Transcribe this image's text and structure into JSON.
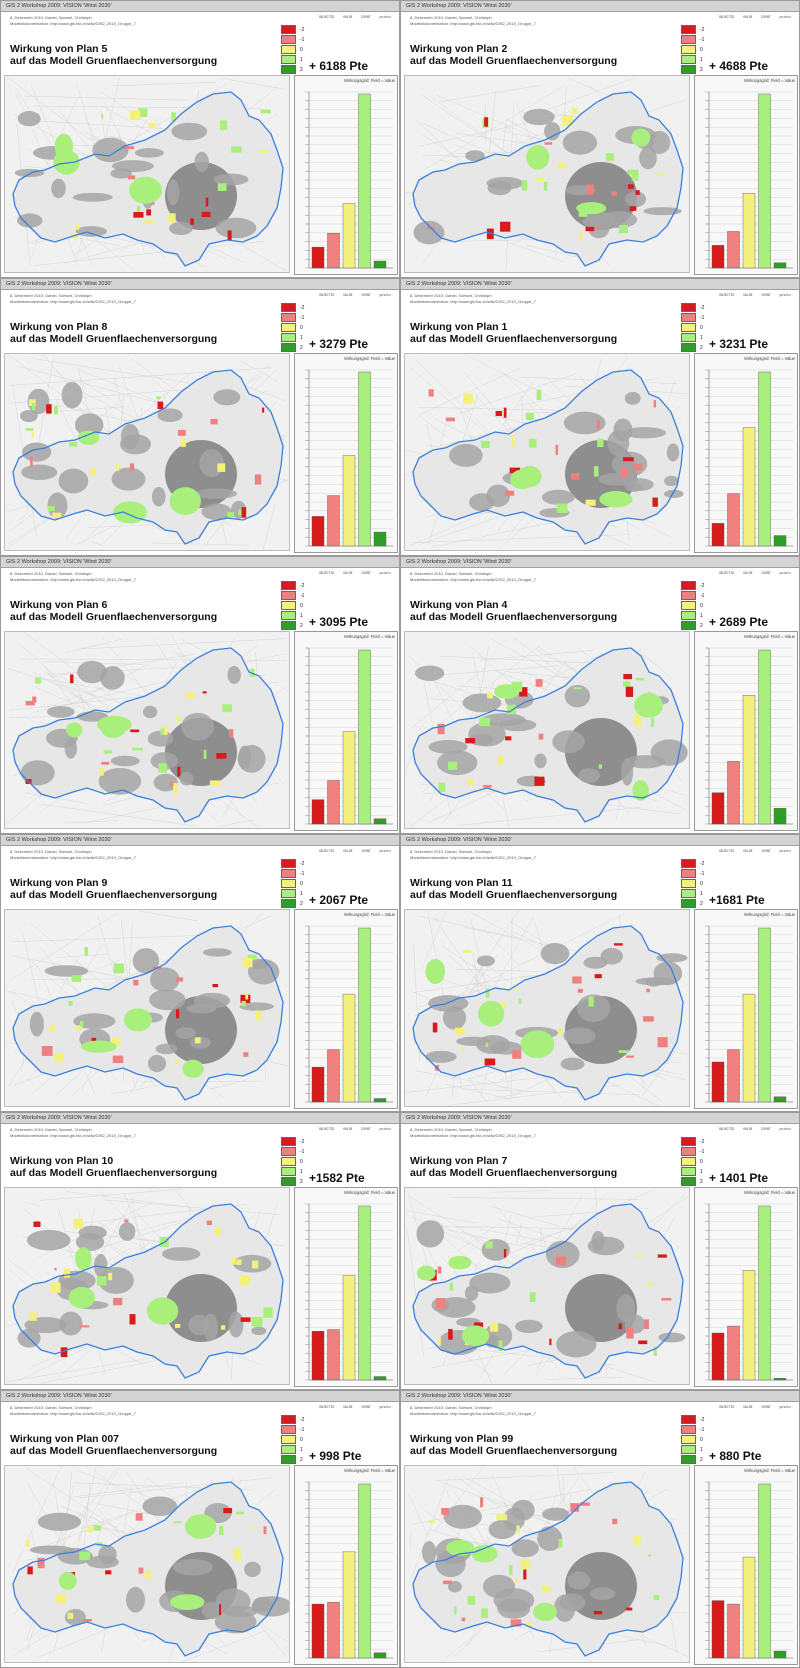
{
  "colors": {
    "-2": "#d91a1a",
    "-1": "#ee8080",
    "0": "#f4f07c",
    "1": "#a8ef7c",
    "2": "#2f9e27"
  },
  "legend_labels": [
    "-2",
    "-1",
    "0",
    "1",
    "2"
  ],
  "chart_title": "Wirkungsgrid: Field = Value",
  "stats_header": [
    "OBJECTID",
    "VALUE",
    "COUNT",
    "points"
  ],
  "panels": [
    {
      "header": "GIS 2 Workshop 2009: VISION 'Wirst 2030'",
      "meta1": "8. Dezember 2010, Daniel, Samuel, Christoph",
      "meta2": "Modelldokumentation: http://www.gis.hsr.ch/wiki/GIS2_2010_Gruppe_7",
      "title_line1": "Wirkung von Plan 5",
      "title_line2": "auf das Modell Gruenflaechenversorgung",
      "total": "+ 6188 Pte",
      "values": [
        0.12,
        0.2,
        0.37,
        1.0,
        0.04
      ]
    },
    {
      "header": "GIS 2 Workshop 2009: VISION 'Wirst 2030'",
      "meta1": "8. Dezember 2010, Daniel, Samuel, Christoph",
      "meta2": "Modelldokumentation: http://www.gis.hsr.ch/wiki/GIS2_2010_Gruppe_7",
      "title_line1": "Wirkung von Plan 2",
      "title_line2": "auf das Modell Gruenflaechenversorgung",
      "total": "+ 4688 Pte",
      "values": [
        0.13,
        0.21,
        0.43,
        1.0,
        0.03
      ]
    },
    {
      "header": "GIS 2 Workshop 2009: VISION 'Wirst 2030'",
      "meta1": "8. Dezember 2010, Daniel, Samuel, Christoph",
      "meta2": "Modelldokumentation: http://www.gis.hsr.ch/wiki/GIS2_2010_Gruppe_7",
      "title_line1": "Wirkung von Plan 8",
      "title_line2": "auf das Modell Gruenflaechenversorgung",
      "total": "+ 3279 Pte",
      "values": [
        0.17,
        0.29,
        0.52,
        1.0,
        0.08
      ]
    },
    {
      "header": "GIS 2 Workshop 2009: VISION 'Wirst 2030'",
      "meta1": "8. Dezember 2010, Daniel, Samuel, Christoph",
      "meta2": "Modelldokumentation: http://www.gis.hsr.ch/wiki/GIS2_2010_Gruppe_7",
      "title_line1": "Wirkung von Plan 1",
      "title_line2": "auf das Modell Gruenflaechenversorgung",
      "total": "+ 3231 Pte",
      "values": [
        0.13,
        0.3,
        0.68,
        1.0,
        0.06
      ]
    },
    {
      "header": "GIS 2 Workshop 2009: VISION 'Wirst 2030'",
      "meta1": "8. Dezember 2010, Daniel, Samuel, Christoph",
      "meta2": "Modelldokumentation: http://www.gis.hsr.ch/wiki/GIS2_2010_Gruppe_7",
      "title_line1": "Wirkung von Plan 6",
      "title_line2": "auf das Modell Gruenflaechenversorgung",
      "total": "+ 3095 Pte",
      "values": [
        0.14,
        0.25,
        0.53,
        1.0,
        0.03
      ]
    },
    {
      "header": "GIS 2 Workshop 2009: VISION 'Wirst 2030'",
      "meta1": "8. Dezember 2010, Daniel, Samuel, Christoph",
      "meta2": "Modelldokumentation: http://www.gis.hsr.ch/wiki/GIS2_2010_Gruppe_7",
      "title_line1": "Wirkung von Plan 4",
      "title_line2": "auf das Modell Gruenflaechenversorgung",
      "total": "+ 2689 Pte",
      "values": [
        0.18,
        0.36,
        0.74,
        1.0,
        0.09
      ]
    },
    {
      "header": "GIS 2 Workshop 2009: VISION 'Wirst 2030'",
      "meta1": "8. Dezember 2010, Daniel, Samuel, Christoph",
      "meta2": "Modelldokumentation: http://www.gis.hsr.ch/wiki/GIS2_2010_Gruppe_7",
      "title_line1": "Wirkung von Plan 9",
      "title_line2": "auf das Modell Gruenflaechenversorgung",
      "total": "+ 2067 Pte",
      "values": [
        0.2,
        0.3,
        0.62,
        1.0,
        0.02
      ]
    },
    {
      "header": "GIS 2 Workshop 2009: VISION 'Wirst 2030'",
      "meta1": "8. Dezember 2010, Daniel, Samuel, Christoph",
      "meta2": "Modelldokumentation: http://www.gis.hsr.ch/wiki/GIS2_2010_Gruppe_7",
      "title_line1": "Wirkung von Plan 11",
      "title_line2": "auf das Modell Gruenflaechenversorgung",
      "total": "+1681 Pte",
      "values": [
        0.23,
        0.3,
        0.62,
        1.0,
        0.03
      ]
    },
    {
      "header": "GIS 2 Workshop 2009: VISION 'Wirst 2030'",
      "meta1": "8. Dezember 2010, Daniel, Samuel, Christoph",
      "meta2": "Modelldokumentation: http://www.gis.hsr.ch/wiki/GIS2_2010_Gruppe_7",
      "title_line1": "Wirkung von Plan 10",
      "title_line2": "auf das Modell Gruenflaechenversorgung",
      "total": "+1582 Pte",
      "values": [
        0.28,
        0.29,
        0.6,
        1.0,
        0.02
      ]
    },
    {
      "header": "GIS 2 Workshop 2009: VISION 'Wirst 2030'",
      "meta1": "8. Dezember 2010, Daniel, Samuel, Christoph",
      "meta2": "Modelldokumentation: http://www.gis.hsr.ch/wiki/GIS2_2010_Gruppe_7",
      "title_line1": "Wirkung von Plan 7",
      "title_line2": "auf das Modell Gruenflaechenversorgung",
      "total": "+ 1401 Pte",
      "values": [
        0.27,
        0.31,
        0.63,
        1.0,
        0.01
      ]
    },
    {
      "header": "GIS 2 Workshop 2009: VISION 'Wirst 2030'",
      "meta1": "8. Dezember 2010, Daniel, Samuel, Christoph",
      "meta2": "Modelldokumentation: http://www.gis.hsr.ch/wiki/GIS2_2010_Gruppe_7",
      "title_line1": "Wirkung von Plan 007",
      "title_line2": "auf das Modell Gruenflaechenversorgung",
      "total": "+ 998 Pte",
      "values": [
        0.31,
        0.32,
        0.61,
        1.0,
        0.03
      ]
    },
    {
      "header": "GIS 2 Workshop 2009: VISION 'Wirst 2030'",
      "meta1": "8. Dezember 2010, Daniel, Samuel, Christoph",
      "meta2": "Modelldokumentation: http://www.gis.hsr.ch/wiki/GIS2_2010_Gruppe_7",
      "title_line1": "Wirkung von Plan 99",
      "title_line2": "auf das Modell Gruenflaechenversorgung",
      "total": "+ 880 Pte",
      "values": [
        0.33,
        0.31,
        0.58,
        1.0,
        0.04
      ]
    }
  ]
}
